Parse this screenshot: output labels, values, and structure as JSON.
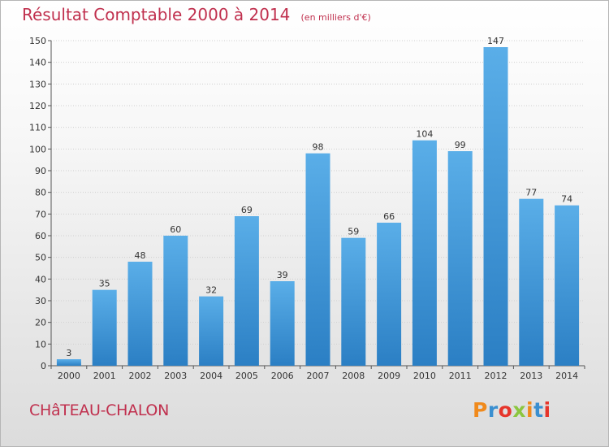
{
  "chart_data": {
    "type": "bar",
    "title": "Résultat Comptable 2000 à 2014",
    "subtitle": "(en milliers d'€)",
    "categories": [
      "2000",
      "2001",
      "2002",
      "2003",
      "2004",
      "2005",
      "2006",
      "2007",
      "2008",
      "2009",
      "2010",
      "2011",
      "2012",
      "2013",
      "2014"
    ],
    "values": [
      3,
      35,
      48,
      60,
      32,
      69,
      39,
      98,
      59,
      66,
      104,
      99,
      147,
      77,
      74
    ],
    "ylim": [
      0,
      150
    ],
    "yticks": [
      0,
      10,
      20,
      30,
      40,
      50,
      60,
      70,
      80,
      90,
      100,
      110,
      120,
      130,
      140,
      150
    ],
    "grid": true,
    "legend": "none",
    "bar_color_top": "#5aaee8",
    "bar_color_bottom": "#2b7fc4"
  },
  "footer": {
    "place": "CHâTEAU-CHALON",
    "logo": "Proxiti",
    "logo_colors": [
      "#f08a1c",
      "#3a8fd0",
      "#e6352b",
      "#8cc63f",
      "#f08a1c",
      "#3a8fd0",
      "#e6352b"
    ]
  },
  "colors": {
    "title": "#c0304e"
  }
}
